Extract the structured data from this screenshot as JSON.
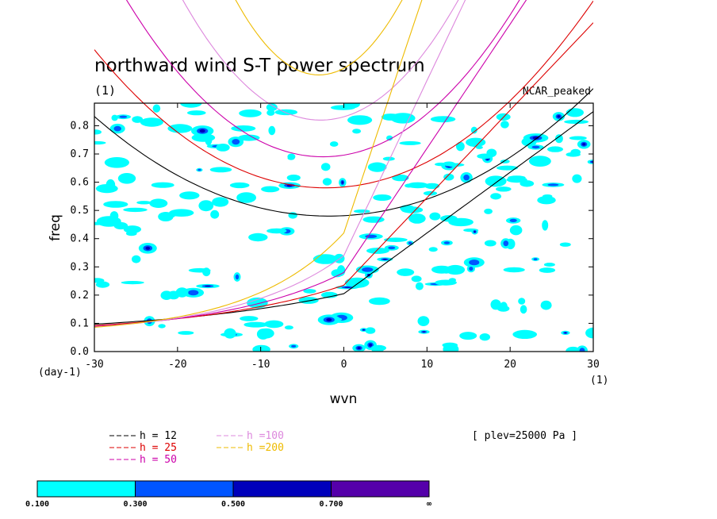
{
  "chart_data": {
    "type": "contour",
    "title": "northward wind S-T power spectrum",
    "subtitle": "(1)",
    "dataset": "NCAR_peaked",
    "xlabel": "wvn",
    "ylabel": "freq",
    "x_units": "(1)",
    "y_units": "(day-1)",
    "plev_note": "[ plev=25000 Pa ]",
    "xlim": [
      -30,
      30
    ],
    "ylim": [
      0,
      0.88
    ],
    "xticks": [
      -30,
      -20,
      -10,
      0,
      10,
      20,
      30
    ],
    "yticks": [
      0.0,
      0.1,
      0.2,
      0.3,
      0.4,
      0.5,
      0.6,
      0.7,
      0.8
    ],
    "ytick_labels": [
      "0.0",
      "0.1",
      "0.2",
      "0.3",
      "0.4",
      "0.5",
      "0.6",
      "0.7",
      "0.8"
    ],
    "xtick_labels": [
      "-30",
      "-20",
      "-10",
      "0",
      "10",
      "20",
      "30"
    ],
    "dispersion_curves": [
      {
        "label": "h = 12",
        "h": 12,
        "color": "#000000"
      },
      {
        "label": "h = 25",
        "h": 25,
        "color": "#dd0000"
      },
      {
        "label": "h = 50",
        "h": 50,
        "color": "#cc00aa"
      },
      {
        "label": "h =100",
        "h": 100,
        "color": "#dd88dd"
      },
      {
        "label": "h =200",
        "h": 200,
        "color": "#eebb00"
      }
    ],
    "colorbar": {
      "levels": [
        "0.100",
        "0.300",
        "0.500",
        "0.700",
        "∞"
      ],
      "colors": [
        "#00ffff",
        "#0055ff",
        "#0000bb",
        "#5500aa"
      ]
    },
    "colors": {
      "low": "#00ffff",
      "mid": "#0055ff",
      "high": "#0000bb",
      "top": "#5500aa"
    }
  }
}
